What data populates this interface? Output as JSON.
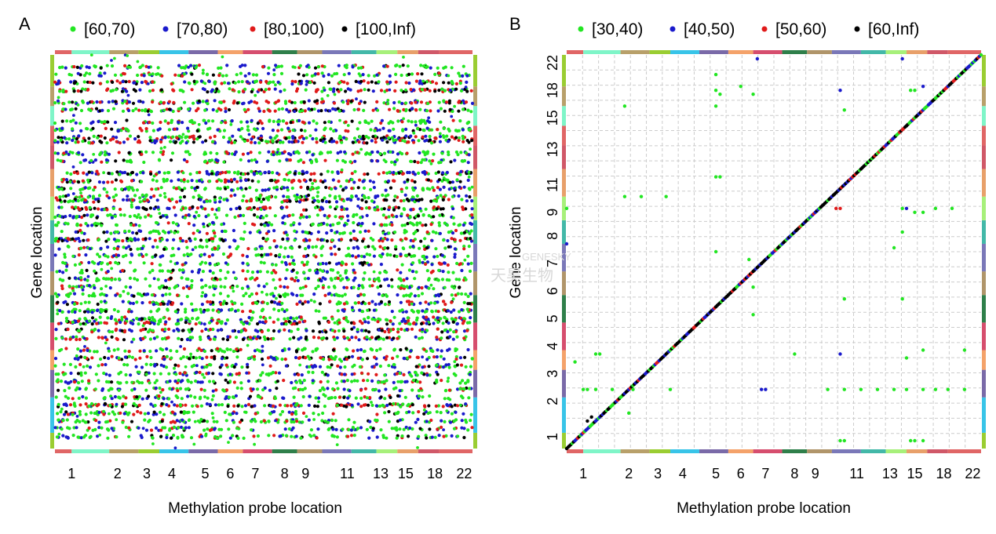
{
  "palette": {
    "strip": [
      "#e06666",
      "#7ff5c8",
      "#b8a06a",
      "#9acd32",
      "#38c4e8",
      "#7a6aa8",
      "#f4a26a",
      "#d64e6e",
      "#2f7f4a",
      "#b0956a",
      "#7a78b8",
      "#43b8a8",
      "#a7f07a",
      "#e8a06a",
      "#d05868"
    ],
    "grid": "#cccccc",
    "frame": "#999999"
  },
  "watermark": {
    "line1": "GENESKY",
    "line2": "天昊生物"
  },
  "chart_data": [
    {
      "type": "scatter",
      "panel": "A",
      "title": "",
      "xlabel": "Methylation probe location",
      "ylabel": "Gene location",
      "xticks": [
        "1",
        "2",
        "3",
        "4",
        "5",
        "6",
        "7",
        "8",
        "9",
        "11",
        "13",
        "15",
        "18",
        "22"
      ],
      "grid": false,
      "legend_position": "top",
      "legend": [
        {
          "label": "[60,70)",
          "color": "#22e622"
        },
        {
          "label": "[70,80)",
          "color": "#1a1acc"
        },
        {
          "label": "[80,100)",
          "color": "#e01a1a"
        },
        {
          "label": "[100,Inf)",
          "color": "#000000"
        }
      ],
      "band_rows": [
        0.03,
        0.05,
        0.07,
        0.09,
        0.12,
        0.14,
        0.17,
        0.19,
        0.21,
        0.22,
        0.25,
        0.27,
        0.3,
        0.32,
        0.34,
        0.36,
        0.37,
        0.39,
        0.41,
        0.43,
        0.45,
        0.47,
        0.49,
        0.51,
        0.53,
        0.55,
        0.57,
        0.59,
        0.61,
        0.63,
        0.65,
        0.67,
        0.68,
        0.7,
        0.72,
        0.75,
        0.77,
        0.79,
        0.81,
        0.83,
        0.85,
        0.87,
        0.89,
        0.91,
        0.93,
        0.95,
        0.97
      ],
      "density_note": "dense genome-wide trans associations; values shown as point clouds"
    },
    {
      "type": "scatter",
      "panel": "B",
      "title": "",
      "xlabel": "Methylation probe location",
      "ylabel": "Gene location",
      "xticks": [
        "1",
        "2",
        "3",
        "4",
        "5",
        "6",
        "7",
        "8",
        "9",
        "11",
        "13",
        "15",
        "18",
        "22"
      ],
      "yticks": [
        "1",
        "2",
        "3",
        "4",
        "5",
        "6",
        "7",
        "8",
        "9",
        "11",
        "13",
        "15",
        "18",
        "22"
      ],
      "grid": true,
      "legend_position": "top",
      "legend": [
        {
          "label": "[30,40)",
          "color": "#22e622"
        },
        {
          "label": "[40,50)",
          "color": "#1a1acc"
        },
        {
          "label": "[50,60)",
          "color": "#e01a1a"
        },
        {
          "label": "[60,Inf)",
          "color": "#000000"
        }
      ],
      "diagonal": {
        "from": [
          0,
          0
        ],
        "to": [
          1,
          1
        ],
        "note": "cis associations along the diagonal"
      },
      "off_diagonal_points": [
        {
          "x": 0.36,
          "y": 0.95,
          "c": "green"
        },
        {
          "x": 0.36,
          "y": 0.91,
          "c": "green"
        },
        {
          "x": 0.37,
          "y": 0.9,
          "c": "green"
        },
        {
          "x": 0.42,
          "y": 0.92,
          "c": "green"
        },
        {
          "x": 0.45,
          "y": 0.9,
          "c": "green"
        },
        {
          "x": 0.46,
          "y": 0.99,
          "c": "blue"
        },
        {
          "x": 0.66,
          "y": 0.91,
          "c": "blue"
        },
        {
          "x": 0.81,
          "y": 0.99,
          "c": "blue"
        },
        {
          "x": 0.83,
          "y": 0.91,
          "c": "green"
        },
        {
          "x": 0.84,
          "y": 0.91,
          "c": "green"
        },
        {
          "x": 0.86,
          "y": 0.92,
          "c": "blue"
        },
        {
          "x": 0.67,
          "y": 0.86,
          "c": "green"
        },
        {
          "x": 0.36,
          "y": 0.87,
          "c": "green"
        },
        {
          "x": 0.14,
          "y": 0.87,
          "c": "green"
        },
        {
          "x": 0.36,
          "y": 0.69,
          "c": "green"
        },
        {
          "x": 0.37,
          "y": 0.69,
          "c": "green"
        },
        {
          "x": 0.14,
          "y": 0.64,
          "c": "green"
        },
        {
          "x": 0.18,
          "y": 0.64,
          "c": "green"
        },
        {
          "x": 0.24,
          "y": 0.64,
          "c": "green"
        },
        {
          "x": 0.0,
          "y": 0.61,
          "c": "green"
        },
        {
          "x": 0.0,
          "y": 0.52,
          "c": "blue"
        },
        {
          "x": 0.36,
          "y": 0.5,
          "c": "green"
        },
        {
          "x": 0.44,
          "y": 0.48,
          "c": "green"
        },
        {
          "x": 0.45,
          "y": 0.41,
          "c": "green"
        },
        {
          "x": 0.45,
          "y": 0.34,
          "c": "green"
        },
        {
          "x": 0.65,
          "y": 0.61,
          "c": "red"
        },
        {
          "x": 0.66,
          "y": 0.61,
          "c": "red"
        },
        {
          "x": 0.81,
          "y": 0.61,
          "c": "green"
        },
        {
          "x": 0.82,
          "y": 0.61,
          "c": "blue"
        },
        {
          "x": 0.84,
          "y": 0.6,
          "c": "green"
        },
        {
          "x": 0.86,
          "y": 0.6,
          "c": "green"
        },
        {
          "x": 0.89,
          "y": 0.61,
          "c": "green"
        },
        {
          "x": 0.93,
          "y": 0.61,
          "c": "green"
        },
        {
          "x": 0.81,
          "y": 0.55,
          "c": "green"
        },
        {
          "x": 0.79,
          "y": 0.51,
          "c": "green"
        },
        {
          "x": 0.67,
          "y": 0.38,
          "c": "green"
        },
        {
          "x": 0.81,
          "y": 0.38,
          "c": "green"
        },
        {
          "x": 0.86,
          "y": 0.25,
          "c": "green"
        },
        {
          "x": 0.96,
          "y": 0.25,
          "c": "green"
        },
        {
          "x": 0.66,
          "y": 0.24,
          "c": "blue"
        },
        {
          "x": 0.55,
          "y": 0.24,
          "c": "green"
        },
        {
          "x": 0.82,
          "y": 0.23,
          "c": "green"
        },
        {
          "x": 0.02,
          "y": 0.22,
          "c": "green"
        },
        {
          "x": 0.07,
          "y": 0.24,
          "c": "green"
        },
        {
          "x": 0.08,
          "y": 0.24,
          "c": "green"
        },
        {
          "x": 0.04,
          "y": 0.15,
          "c": "green"
        },
        {
          "x": 0.05,
          "y": 0.15,
          "c": "green"
        },
        {
          "x": 0.07,
          "y": 0.15,
          "c": "green"
        },
        {
          "x": 0.11,
          "y": 0.15,
          "c": "green"
        },
        {
          "x": 0.16,
          "y": 0.15,
          "c": "green"
        },
        {
          "x": 0.25,
          "y": 0.15,
          "c": "green"
        },
        {
          "x": 0.47,
          "y": 0.15,
          "c": "blue"
        },
        {
          "x": 0.48,
          "y": 0.15,
          "c": "blue"
        },
        {
          "x": 0.63,
          "y": 0.15,
          "c": "green"
        },
        {
          "x": 0.67,
          "y": 0.15,
          "c": "green"
        },
        {
          "x": 0.71,
          "y": 0.15,
          "c": "green"
        },
        {
          "x": 0.75,
          "y": 0.15,
          "c": "green"
        },
        {
          "x": 0.79,
          "y": 0.15,
          "c": "green"
        },
        {
          "x": 0.82,
          "y": 0.15,
          "c": "green"
        },
        {
          "x": 0.86,
          "y": 0.15,
          "c": "green"
        },
        {
          "x": 0.89,
          "y": 0.15,
          "c": "green"
        },
        {
          "x": 0.92,
          "y": 0.15,
          "c": "green"
        },
        {
          "x": 0.96,
          "y": 0.15,
          "c": "green"
        },
        {
          "x": 0.15,
          "y": 0.09,
          "c": "green"
        },
        {
          "x": 0.66,
          "y": 0.02,
          "c": "green"
        },
        {
          "x": 0.67,
          "y": 0.02,
          "c": "green"
        },
        {
          "x": 0.83,
          "y": 0.02,
          "c": "green"
        },
        {
          "x": 0.84,
          "y": 0.02,
          "c": "green"
        },
        {
          "x": 0.86,
          "y": 0.02,
          "c": "green"
        },
        {
          "x": 0.06,
          "y": 0.08,
          "c": "black"
        },
        {
          "x": 0.05,
          "y": 0.07,
          "c": "black"
        }
      ]
    }
  ]
}
